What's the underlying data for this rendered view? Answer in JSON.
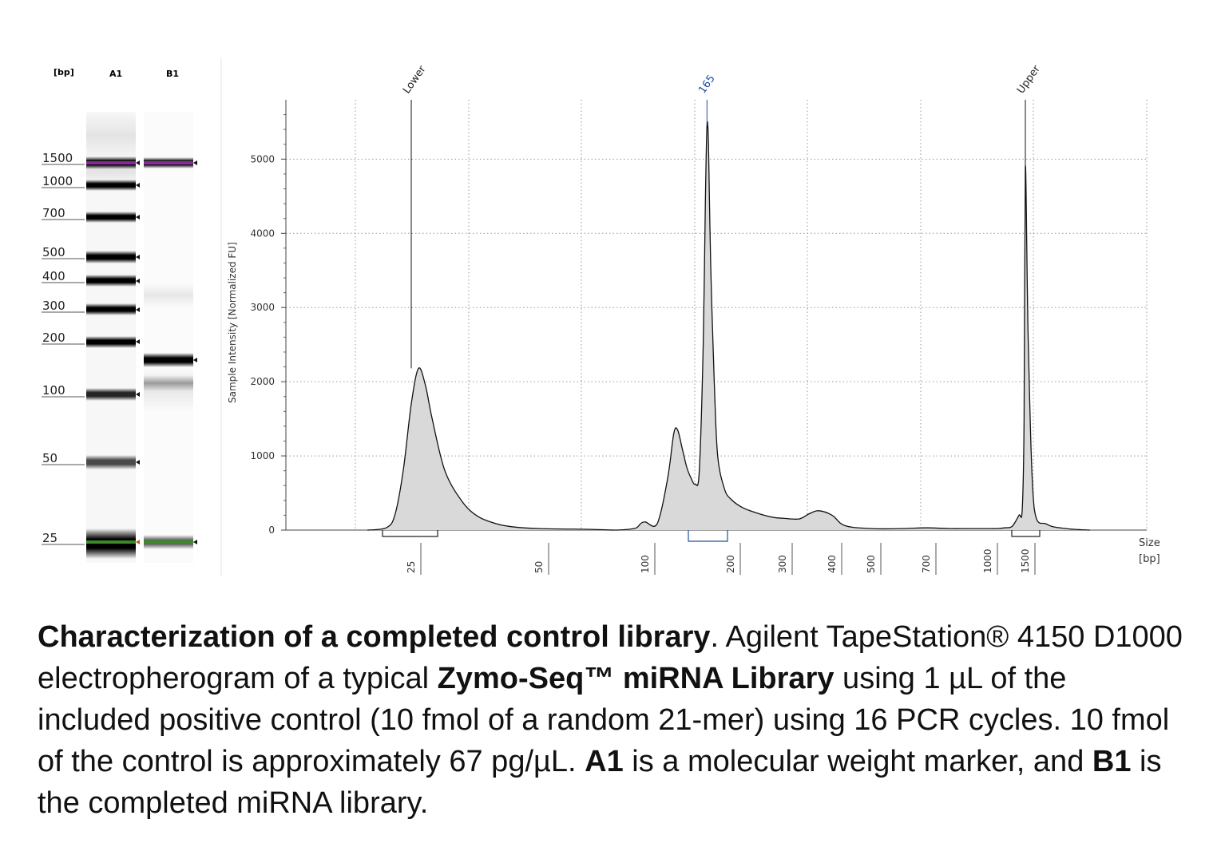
{
  "gel": {
    "unit_label": "[bp]",
    "lanes": [
      "A1",
      "B1"
    ],
    "ladder_labels": [
      "1500",
      "1000",
      "700",
      "500",
      "400",
      "300",
      "200",
      "100",
      "50",
      "25"
    ]
  },
  "chart_data": {
    "type": "line",
    "title": "",
    "xlabel": "Size\n[bp]",
    "xlabel_line1": "Size",
    "xlabel_line2": "[bp]",
    "ylabel": "Sample Intensity [Normalized FU]",
    "ylim": [
      0,
      5800
    ],
    "yticks": [
      "0",
      "1000",
      "2000",
      "3000",
      "4000",
      "5000"
    ],
    "xticks": [
      "25",
      "50",
      "100",
      "200",
      "300",
      "400",
      "500",
      "700",
      "1000",
      "1500"
    ],
    "grid": true,
    "peak_annotations": [
      {
        "label": "Lower",
        "size_bp": 25,
        "intensity": 2180
      },
      {
        "label": "165",
        "size_bp": 165,
        "intensity": 5450
      },
      {
        "label": "Upper",
        "size_bp": 1500,
        "intensity": 4900
      }
    ],
    "series": [
      {
        "size_bp": [
          20,
          22,
          23,
          24,
          25,
          26,
          27,
          28,
          30,
          33,
          36,
          40,
          44,
          50,
          60,
          75,
          85,
          92,
          96,
          100,
          110,
          120,
          126,
          130,
          135,
          140,
          145,
          150,
          155,
          160,
          163,
          165,
          167,
          170,
          175,
          180,
          190,
          200,
          220,
          250,
          280,
          300,
          330,
          350,
          370,
          400,
          430,
          500,
          600,
          700,
          800,
          900,
          1000,
          1100,
          1200,
          1300,
          1400,
          1450,
          1480,
          1500,
          1520,
          1560,
          1650,
          1800,
          2000
        ],
        "intensity": [
          0,
          30,
          200,
          800,
          1700,
          2180,
          1950,
          1500,
          800,
          380,
          180,
          80,
          40,
          20,
          10,
          0,
          10,
          30,
          90,
          110,
          80,
          700,
          1300,
          1350,
          1100,
          850,
          700,
          620,
          800,
          2500,
          4500,
          5450,
          5200,
          3600,
          2000,
          1000,
          560,
          420,
          300,
          220,
          170,
          160,
          150,
          220,
          260,
          200,
          60,
          20,
          20,
          30,
          20,
          20,
          20,
          20,
          30,
          50,
          200,
          280,
          1500,
          4900,
          2500,
          300,
          80,
          20,
          0
        ]
      }
    ]
  },
  "caption": {
    "p1_bold": "Characterization of a completed control library",
    "p2": ". Agilent TapeStation® 4150 D1000 electropherogram of a typical ",
    "p3_bold": "Zymo-Seq™ miRNA Library",
    "p4": " using 1 µL of the included positive control (10 fmol of a random 21-mer) using 16 PCR cycles. 10 fmol of the control is approximately 67 pg/µL. ",
    "p5_bold": "A1",
    "p6": " is a molecular weight marker, and ",
    "p7_bold": "B1",
    "p8": " is the completed miRNA library."
  }
}
